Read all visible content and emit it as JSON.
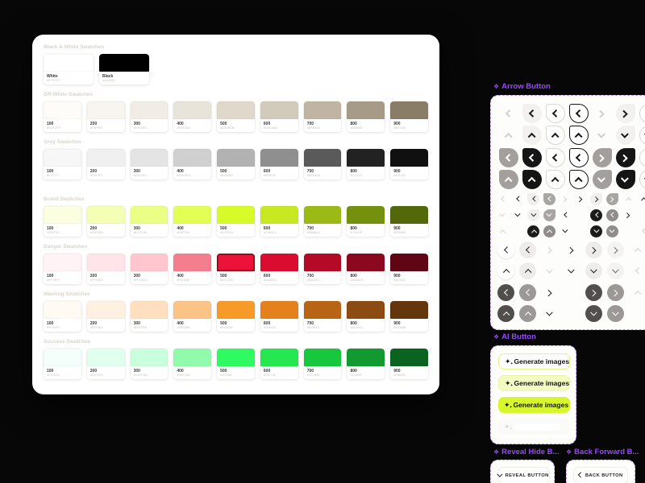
{
  "icons": {
    "component_set": "❖",
    "sparkle": "✦"
  },
  "colors": {
    "accent_purple": "#9747FF",
    "brand_lime": "#D7F62B",
    "canvas_bg": "#070707"
  },
  "swatch_card": {
    "sections": [
      {
        "title": "Black & White Swatches",
        "wide": true,
        "swatches": [
          {
            "name": "White",
            "hex": "#FFFFFF",
            "color": "#FFFFFF"
          },
          {
            "name": "Black",
            "hex": "#000000",
            "color": "#000000"
          }
        ]
      },
      {
        "title": "Off-White Swatches",
        "swatches": [
          {
            "name": "100",
            "hex": "#FDFCF9",
            "color": "#FDFCF9"
          },
          {
            "name": "200",
            "hex": "#F8F5F0",
            "color": "#F8F5F0"
          },
          {
            "name": "300",
            "hex": "#F1EDE6",
            "color": "#F1EDE6"
          },
          {
            "name": "400",
            "hex": "#E9E4DA",
            "color": "#E9E4DA"
          },
          {
            "name": "500",
            "hex": "#DFD8CB",
            "color": "#DFD8CB"
          },
          {
            "name": "600",
            "hex": "#D2CABA",
            "color": "#D2CABA"
          },
          {
            "name": "700",
            "hex": "#BFB5A2",
            "color": "#BFB5A2"
          },
          {
            "name": "800",
            "hex": "#A69B87",
            "color": "#A69B87"
          },
          {
            "name": "900",
            "hex": "#897D67",
            "color": "#897D67"
          }
        ]
      },
      {
        "title": "Grey Swatches",
        "swatches": [
          {
            "name": "100",
            "hex": "#F7F7F7",
            "color": "#F7F7F7"
          },
          {
            "name": "200",
            "hex": "#F0F0F0",
            "color": "#F0F0F0"
          },
          {
            "name": "300",
            "hex": "#E4E4E4",
            "color": "#E4E4E4"
          },
          {
            "name": "400",
            "hex": "#D0D0D0",
            "color": "#D0D0D0"
          },
          {
            "name": "500",
            "hex": "#B2B2B2",
            "color": "#B2B2B2"
          },
          {
            "name": "600",
            "hex": "#8F8F8F",
            "color": "#8F8F8F"
          },
          {
            "name": "700",
            "hex": "#5A5A5A",
            "color": "#5A5A5A"
          },
          {
            "name": "800",
            "hex": "#222222",
            "color": "#222222"
          },
          {
            "name": "900",
            "hex": "#101010",
            "color": "#101010"
          }
        ]
      },
      {
        "title": "Brand Swatches",
        "extra_gap": true,
        "swatches": [
          {
            "name": "100",
            "hex": "#FBFFE0",
            "color": "#FBFFE0"
          },
          {
            "name": "200",
            "hex": "#F4FFB5",
            "color": "#F4FFB5"
          },
          {
            "name": "300",
            "hex": "#ECFF85",
            "color": "#ECFF85"
          },
          {
            "name": "400",
            "hex": "#E3FF54",
            "color": "#E3FF54"
          },
          {
            "name": "500",
            "hex": "#D7FA29",
            "color": "#D7FA29"
          },
          {
            "name": "600",
            "hex": "#C8E822",
            "color": "#C8E822"
          },
          {
            "name": "700",
            "hex": "#9BBA15",
            "color": "#9BBA15"
          },
          {
            "name": "800",
            "hex": "#74910E",
            "color": "#74910E"
          },
          {
            "name": "900",
            "hex": "#53680A",
            "color": "#53680A"
          }
        ]
      },
      {
        "title": "Danger Swatches",
        "swatches": [
          {
            "name": "100",
            "hex": "#FFF3F5",
            "color": "#FFF3F5"
          },
          {
            "name": "200",
            "hex": "#FFE4E9",
            "color": "#FFE4E9"
          },
          {
            "name": "300",
            "hex": "#FFC6D0",
            "color": "#FFC6D0"
          },
          {
            "name": "400",
            "hex": "#F57E8E",
            "color": "#F57E8E"
          },
          {
            "name": "500",
            "hex": "#EC1239",
            "color": "#EC1239",
            "ring": true
          },
          {
            "name": "600",
            "hex": "#DA0D31",
            "color": "#DA0D31"
          },
          {
            "name": "700",
            "hex": "#B40A27",
            "color": "#B40A27"
          },
          {
            "name": "800",
            "hex": "#8C081E",
            "color": "#8C081E"
          },
          {
            "name": "900",
            "hex": "#5F0514",
            "color": "#5F0514"
          }
        ]
      },
      {
        "title": "Warning Swatches",
        "swatches": [
          {
            "name": "100",
            "hex": "#FFFAF4",
            "color": "#FFFAF4"
          },
          {
            "name": "200",
            "hex": "#FFF1E2",
            "color": "#FFF1E2"
          },
          {
            "name": "300",
            "hex": "#FFDFBE",
            "color": "#FFDFBE"
          },
          {
            "name": "400",
            "hex": "#FBC386",
            "color": "#FBC386"
          },
          {
            "name": "500",
            "hex": "#F69A28",
            "color": "#F69A28"
          },
          {
            "name": "600",
            "hex": "#E4811D",
            "color": "#E4811D"
          },
          {
            "name": "700",
            "hex": "#B76515",
            "color": "#B76515"
          },
          {
            "name": "800",
            "hex": "#8C4B10",
            "color": "#8C4B10"
          },
          {
            "name": "900",
            "hex": "#63360B",
            "color": "#63360B"
          }
        ]
      },
      {
        "title": "Success Swatches",
        "swatches": [
          {
            "name": "100",
            "hex": "#F3FFFA",
            "color": "#F3FFFA"
          },
          {
            "name": "200",
            "hex": "#E1FFEF",
            "color": "#E1FFEF"
          },
          {
            "name": "300",
            "hex": "#CAFFDD",
            "color": "#CAFFDD"
          },
          {
            "name": "400",
            "hex": "#90FCAB",
            "color": "#90FCAB"
          },
          {
            "name": "500",
            "hex": "#30FA61",
            "color": "#30FA61"
          },
          {
            "name": "600",
            "hex": "#25E74F",
            "color": "#25E74F"
          },
          {
            "name": "700",
            "hex": "#17C83E",
            "color": "#17C83E"
          },
          {
            "name": "800",
            "hex": "#12992F",
            "color": "#12992F"
          },
          {
            "name": "900",
            "hex": "#0B6320",
            "color": "#0B6320"
          }
        ]
      }
    ]
  },
  "arrow_panel": {
    "title": "Arrow Button",
    "rows": [
      {
        "size": "lg",
        "items": [
          "ghost:l",
          "light:l",
          "outline:l",
          "outline2:l",
          "ghost:r",
          "light:r",
          "outline:r"
        ]
      },
      {
        "size": "lg",
        "items": [
          "ghost:u",
          "light:u",
          "outline:u",
          "outline2:u",
          "ghost:d",
          "light:d",
          "outline:d"
        ]
      },
      {
        "size": "lg",
        "items": [
          "grey:l",
          "black:l",
          "outline:l",
          "outline2:l",
          "grey:r",
          "black:r",
          "outline:r"
        ]
      },
      {
        "size": "lg",
        "items": [
          "grey:u",
          "black:u",
          "outline:u",
          "outline2:u",
          "grey:d",
          "black:d",
          "outline:d"
        ]
      },
      {
        "size": "sm",
        "items": [
          "ghost:l",
          "gd:l",
          "pillL:l",
          "pillG:l",
          "ghost:r",
          "gd:r",
          "pillL:r",
          "pillG:r",
          "ghost:u",
          "gd:u"
        ]
      },
      {
        "size": "sm",
        "items": [
          "ghost:d",
          "gd:d",
          "pillL:d",
          "pillG:d",
          "gd:l",
          "_",
          "cb:l",
          "cg:l",
          "gd:r",
          "_"
        ]
      },
      {
        "size": "sm",
        "items": [
          "ghost:u",
          "_",
          "cb:u",
          "cg:u",
          "gd:d",
          "_",
          "cb:d",
          "cg:d",
          "_",
          "ghost:l"
        ]
      },
      {
        "size": "md",
        "items": [
          "cw:l",
          "cl:l",
          "ghost:r",
          "gd:r",
          "cl:r",
          "cl2:r",
          "ghost:u"
        ]
      },
      {
        "size": "md",
        "items": [
          "cw:u",
          "cl:u",
          "ghost:d",
          "gd:d",
          "cl:d",
          "cl2:d",
          "ghost:l"
        ]
      },
      {
        "size": "md",
        "items": [
          "cd:l",
          "cm:l",
          "gd:r",
          "_",
          "cd:r",
          "cm:r",
          "ghost:u"
        ]
      },
      {
        "size": "md",
        "items": [
          "cd:u",
          "cm:u",
          "gd:d",
          "_",
          "cd:d",
          "cm:d",
          "_"
        ]
      }
    ]
  },
  "ai_panel": {
    "title": "AI Button",
    "buttons": [
      {
        "label": "Generate images",
        "variant": "outline"
      },
      {
        "label": "Generate images",
        "variant": "soft"
      },
      {
        "label": "Generate images",
        "variant": "solid"
      },
      {
        "label": "",
        "variant": "ghost"
      }
    ]
  },
  "bottom_panels": [
    {
      "title": "Reveal Hide B...",
      "button_label": "REVEAL BUTTON",
      "icon": "chevron-down-icon"
    },
    {
      "title": "Back Forward B...",
      "button_label": "BACK BUTTON",
      "icon": "chevron-left-icon"
    }
  ]
}
